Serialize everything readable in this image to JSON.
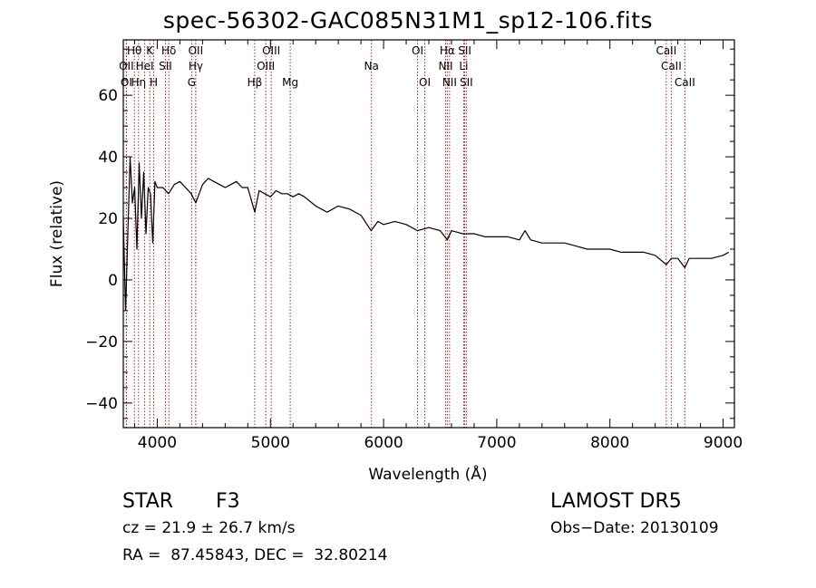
{
  "chart_data": {
    "type": "line",
    "title": "spec-56302-GAC085N31M1_sp12-106.fits",
    "xlabel": "Wavelength (Å)",
    "ylabel": "Flux (relative)",
    "xlim": [
      3700,
      9100
    ],
    "ylim": [
      -48,
      78
    ],
    "xticks": [
      4000,
      5000,
      6000,
      7000,
      8000,
      9000
    ],
    "yticks": [
      -40,
      -20,
      0,
      20,
      40,
      60
    ],
    "xtick_labels": [
      "4000",
      "5000",
      "6000",
      "7000",
      "8000",
      "9000"
    ],
    "ytick_labels": [
      "−40",
      "−20",
      "0",
      "20",
      "40",
      "60"
    ],
    "line_color": "#000000",
    "marker_color": "#cc0000",
    "series": [
      {
        "x": [
          3700,
          3720,
          3740,
          3760,
          3780,
          3800,
          3820,
          3840,
          3860,
          3880,
          3900,
          3920,
          3940,
          3960,
          3980,
          4000,
          4050,
          4100,
          4150,
          4200,
          4250,
          4300,
          4340,
          4400,
          4450,
          4500,
          4550,
          4600,
          4650,
          4700,
          4750,
          4800,
          4862,
          4900,
          4950,
          5000,
          5050,
          5100,
          5150,
          5200,
          5250,
          5300,
          5400,
          5500,
          5600,
          5700,
          5800,
          5890,
          5950,
          6000,
          6100,
          6200,
          6300,
          6400,
          6500,
          6563,
          6600,
          6700,
          6800,
          6900,
          7000,
          7100,
          7200,
          7250,
          7300,
          7400,
          7500,
          7600,
          7700,
          7800,
          7900,
          8000,
          8100,
          8200,
          8300,
          8400,
          8498,
          8542,
          8600,
          8662,
          8700,
          8800,
          8900,
          9000,
          9050
        ],
        "y": [
          20,
          -10,
          15,
          40,
          25,
          30,
          10,
          38,
          20,
          35,
          15,
          30,
          28,
          12,
          32,
          30,
          30,
          28,
          31,
          32,
          30,
          28,
          25,
          31,
          33,
          32,
          31,
          30,
          31,
          32,
          30,
          30,
          22,
          29,
          28,
          27,
          29,
          28,
          28,
          27,
          28,
          27,
          24,
          22,
          24,
          23,
          21,
          16,
          19,
          18,
          19,
          18,
          16,
          17,
          16,
          13,
          16,
          15,
          15,
          14,
          14,
          14,
          13,
          16,
          13,
          12,
          12,
          12,
          11,
          10,
          10,
          10,
          9,
          9,
          9,
          8,
          5,
          7,
          7,
          4,
          7,
          7,
          7,
          8,
          9
        ]
      }
    ],
    "line_markers": [
      {
        "label": "Hθ",
        "x": 3798,
        "row": 1
      },
      {
        "label": "K",
        "x": 3934,
        "row": 1
      },
      {
        "label": "Hδ",
        "x": 4102,
        "row": 1
      },
      {
        "label": "OII",
        "x": 4340,
        "row": 1
      },
      {
        "label": "OIII",
        "x": 5007,
        "row": 1
      },
      {
        "label": "OI",
        "x": 6300,
        "row": 1
      },
      {
        "label": "Hα",
        "x": 6563,
        "row": 1
      },
      {
        "label": "SII",
        "x": 6717,
        "row": 1
      },
      {
        "label": "CaII",
        "x": 8498,
        "row": 1
      },
      {
        "label": "OII",
        "x": 3727,
        "row": 2
      },
      {
        "label": "HeI",
        "x": 3889,
        "row": 2
      },
      {
        "label": "SII",
        "x": 4072,
        "row": 2
      },
      {
        "label": "Hγ",
        "x": 4340,
        "row": 2
      },
      {
        "label": "OIII",
        "x": 4959,
        "row": 2
      },
      {
        "label": "Na",
        "x": 5893,
        "row": 2
      },
      {
        "label": "NII",
        "x": 6548,
        "row": 2
      },
      {
        "label": "Li",
        "x": 6708,
        "row": 2
      },
      {
        "label": "CaII",
        "x": 8542,
        "row": 2
      },
      {
        "label": "OI",
        "x": 3727,
        "row": 3
      },
      {
        "label": "Hη",
        "x": 3835,
        "row": 3
      },
      {
        "label": "H",
        "x": 3969,
        "row": 3
      },
      {
        "label": "G",
        "x": 4304,
        "row": 3
      },
      {
        "label": "Hβ",
        "x": 4861,
        "row": 3
      },
      {
        "label": "Mg",
        "x": 5175,
        "row": 3
      },
      {
        "label": "OI",
        "x": 6364,
        "row": 3
      },
      {
        "label": "NII",
        "x": 6583,
        "row": 3
      },
      {
        "label": "SII",
        "x": 6731,
        "row": 3
      },
      {
        "label": "CaII",
        "x": 8662,
        "row": 3
      }
    ]
  },
  "footer": {
    "object_class": "STAR",
    "subclass": "F3",
    "survey": "LAMOST DR5",
    "cz": "cz = 21.9 ± 26.7 km/s",
    "obs_date": "Obs−Date: 20130109",
    "coords": "RA =  87.45843, DEC =  32.80214"
  }
}
